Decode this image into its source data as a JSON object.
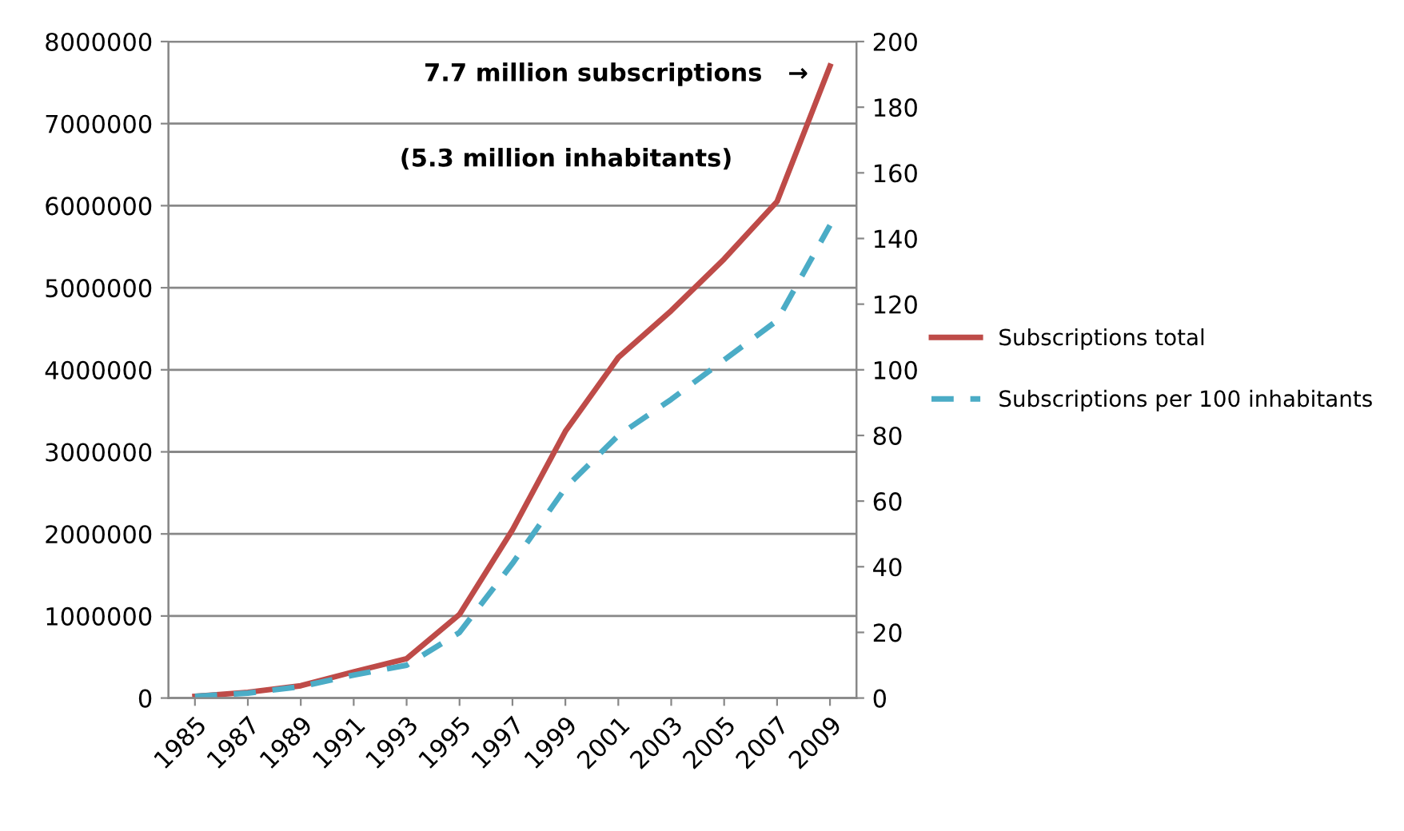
{
  "chart_data": {
    "type": "line",
    "categories": [
      "1985",
      "1987",
      "1989",
      "1991",
      "1993",
      "1995",
      "1997",
      "1999",
      "2001",
      "2003",
      "2005",
      "2007",
      "2009"
    ],
    "series": [
      {
        "name": "Subscriptions total",
        "color": "#be4b48",
        "line_style": "solid",
        "values": [
          20000,
          70000,
          150000,
          320000,
          480000,
          1020000,
          2050000,
          3250000,
          4150000,
          4720000,
          5350000,
          6050000,
          7700000
        ]
      },
      {
        "name": "Subscriptions per 100 inhabitants",
        "color": "#4bacc6",
        "line_style": "dashed",
        "axis": "y2",
        "values": [
          0.5,
          1.5,
          3.5,
          7,
          10,
          20,
          41,
          64,
          80,
          91,
          103,
          115,
          144
        ]
      }
    ],
    "ylim": [
      0,
      8000000
    ],
    "yticks": [
      0,
      1000000,
      2000000,
      3000000,
      4000000,
      5000000,
      6000000,
      7000000,
      8000000
    ],
    "y2lim": [
      0,
      200
    ],
    "y2ticks": [
      0,
      20,
      40,
      60,
      80,
      100,
      120,
      140,
      160,
      180,
      200
    ],
    "grid": "y",
    "legend": "right",
    "marker": "none",
    "annotations": [
      "7.7 million subscriptions   →",
      "(5.3 million inhabitants)"
    ]
  }
}
